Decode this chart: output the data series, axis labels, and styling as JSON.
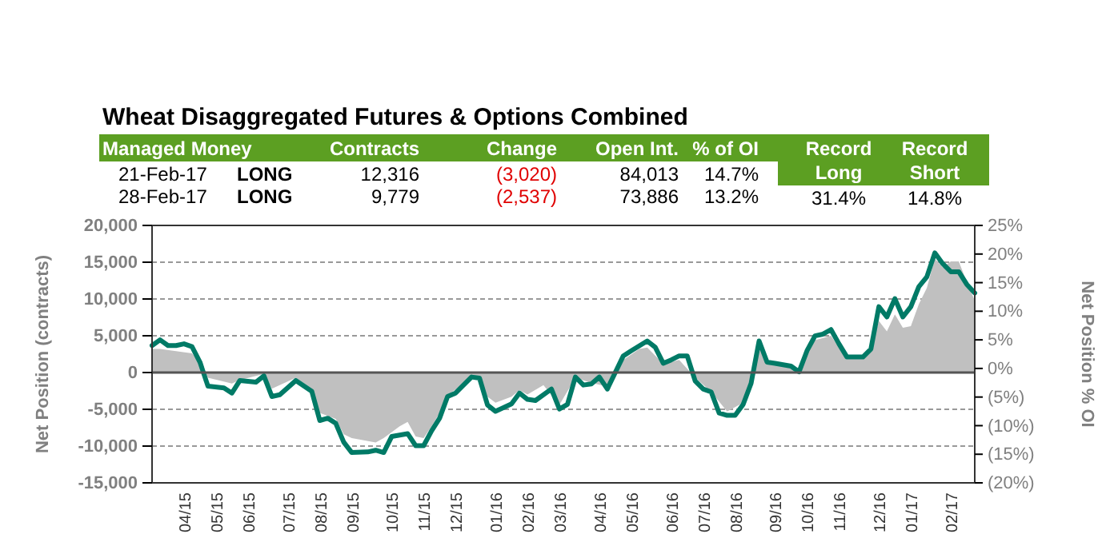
{
  "chart_data": {
    "type": "area",
    "title": "Wheat Disaggregated Futures & Options Combined",
    "ylabel": "Net Position (contracts)",
    "y2label": "Net Position % OI",
    "annotations": [
      "Managed Money",
      "Contracts",
      "Change",
      "Open Int.",
      "% of OI",
      "Record Long",
      "Record Short",
      "21-Feb-17",
      "LONG",
      "12,316",
      "(3,020)",
      "84,013",
      "14.7%",
      "28-Feb-17",
      "LONG",
      "9,779",
      "(2,537)",
      "73,886",
      "13.2%",
      "31.4%",
      "14.8%"
    ],
    "xlim": [
      "2015-03-10",
      "2017-02-28"
    ],
    "xticks": [
      {
        "value": "2015-04-07",
        "label": "04/15"
      },
      {
        "value": "2015-05-05",
        "label": "05/15"
      },
      {
        "value": "2015-06-02",
        "label": "06/15"
      },
      {
        "value": "2015-07-07",
        "label": "07/15"
      },
      {
        "value": "2015-08-04",
        "label": "08/15"
      },
      {
        "value": "2015-09-01",
        "label": "09/15"
      },
      {
        "value": "2015-10-06",
        "label": "10/15"
      },
      {
        "value": "2015-11-03",
        "label": "11/15"
      },
      {
        "value": "2015-12-01",
        "label": "12/15"
      },
      {
        "value": "2016-01-05",
        "label": "01/16"
      },
      {
        "value": "2016-02-02",
        "label": "02/16"
      },
      {
        "value": "2016-03-01",
        "label": "03/16"
      },
      {
        "value": "2016-04-05",
        "label": "04/16"
      },
      {
        "value": "2016-05-03",
        "label": "05/16"
      },
      {
        "value": "2016-06-07",
        "label": "06/16"
      },
      {
        "value": "2016-07-05",
        "label": "07/16"
      },
      {
        "value": "2016-08-02",
        "label": "08/16"
      },
      {
        "value": "2016-09-06",
        "label": "09/16"
      },
      {
        "value": "2016-10-04",
        "label": "10/16"
      },
      {
        "value": "2016-11-01",
        "label": "11/16"
      },
      {
        "value": "2016-12-06",
        "label": "12/16"
      },
      {
        "value": "2017-01-03",
        "label": "01/17"
      },
      {
        "value": "2017-02-07",
        "label": "02/17"
      }
    ],
    "ylim": [
      -15000,
      20000
    ],
    "yticks": [
      {
        "value": -15000,
        "label": "-15,000"
      },
      {
        "value": -10000,
        "label": "-10,000"
      },
      {
        "value": -5000,
        "label": "-5,000"
      },
      0,
      {
        "value": 5000,
        "label": "5,000"
      },
      {
        "value": 10000,
        "label": "10,000"
      },
      {
        "value": 15000,
        "label": "15,000"
      },
      {
        "value": 20000,
        "label": "20,000"
      }
    ],
    "y2lim": [
      -20,
      25
    ],
    "y2ticks": [
      {
        "value": -20,
        "label": "(20%)"
      },
      {
        "value": -15,
        "label": "(15%)"
      },
      {
        "value": -10,
        "label": "(10%)"
      },
      {
        "value": -5,
        "label": "(5%)"
      },
      {
        "value": 0,
        "label": "0%"
      },
      {
        "value": 5,
        "label": "5%"
      },
      {
        "value": 10,
        "label": "10%"
      },
      {
        "value": 15,
        "label": "15%"
      },
      {
        "value": 20,
        "label": "20%"
      },
      {
        "value": 25,
        "label": "25%"
      }
    ],
    "grid": "y",
    "series": [
      {
        "color": "#c0c0c0",
        "x": [
          "2015-03-10",
          "2015-03-17",
          "2015-04-14",
          "2015-04-21",
          "2015-04-28",
          "2015-05-19",
          "2015-05-26",
          "2015-06-16",
          "2015-06-23",
          "2015-07-14",
          "2015-07-28",
          "2015-08-04",
          "2015-08-18",
          "2015-08-25",
          "2015-09-01",
          "2015-09-22",
          "2015-09-29",
          "2015-10-13",
          "2015-10-20",
          "2015-10-27",
          "2015-11-03",
          "2015-11-10",
          "2015-11-17",
          "2015-11-24",
          "2015-12-15",
          "2015-12-22",
          "2015-12-29",
          "2016-01-05",
          "2016-01-19",
          "2016-01-26",
          "2016-02-02",
          "2016-02-16",
          "2016-03-01",
          "2016-03-15",
          "2016-03-29",
          "2016-04-12",
          "2016-04-26",
          "2016-05-10",
          "2016-05-17",
          "2016-05-31",
          "2016-06-14",
          "2016-06-28",
          "2016-07-12",
          "2016-07-26",
          "2016-08-09",
          "2016-08-16",
          "2016-08-23",
          "2016-08-30",
          "2016-09-20",
          "2016-09-27",
          "2016-10-04",
          "2016-10-11",
          "2016-10-25",
          "2016-11-01",
          "2016-11-08",
          "2016-11-22",
          "2016-11-29",
          "2016-12-06",
          "2016-12-13",
          "2016-12-20",
          "2016-12-27",
          "2017-01-03",
          "2017-01-10",
          "2017-01-17",
          "2017-01-24",
          "2017-01-31",
          "2017-02-07",
          "2017-02-14",
          "2017-02-21",
          "2017-02-28"
        ],
        "values": [
          3200,
          3200,
          2600,
          1400,
          -700,
          -1500,
          -1000,
          -200,
          -2200,
          -700,
          -2200,
          -5500,
          -6300,
          -8400,
          -8900,
          -9500,
          -8900,
          -7300,
          -6700,
          -8700,
          -8900,
          -7300,
          -5500,
          -3100,
          -700,
          -700,
          -3300,
          -4100,
          -3300,
          -2400,
          -3000,
          -1700,
          -4400,
          -700,
          -1400,
          -1900,
          1700,
          3200,
          3400,
          1200,
          1700,
          -700,
          -2600,
          -5300,
          -4100,
          -1500,
          3400,
          1200,
          700,
          -100,
          2700,
          4400,
          5000,
          3400,
          2000,
          2000,
          3200,
          7000,
          5600,
          7900,
          6100,
          6300,
          9300,
          11500,
          15500,
          14300,
          15100,
          15100,
          12316,
          9779
        ]
      },
      {
        "type": "line",
        "axis": "y2",
        "color": "#007a66",
        "x": [
          "2015-03-10",
          "2015-03-17",
          "2015-03-24",
          "2015-03-31",
          "2015-04-07",
          "2015-04-14",
          "2015-04-21",
          "2015-04-28",
          "2015-05-12",
          "2015-05-19",
          "2015-05-26",
          "2015-06-09",
          "2015-06-16",
          "2015-06-23",
          "2015-06-30",
          "2015-07-14",
          "2015-07-28",
          "2015-08-04",
          "2015-08-11",
          "2015-08-18",
          "2015-08-25",
          "2015-09-01",
          "2015-09-15",
          "2015-09-22",
          "2015-09-29",
          "2015-10-06",
          "2015-10-20",
          "2015-10-27",
          "2015-11-03",
          "2015-11-10",
          "2015-11-17",
          "2015-11-24",
          "2015-12-01",
          "2015-12-15",
          "2015-12-22",
          "2015-12-29",
          "2016-01-05",
          "2016-01-19",
          "2016-01-26",
          "2016-02-02",
          "2016-02-09",
          "2016-02-23",
          "2016-03-01",
          "2016-03-08",
          "2016-03-15",
          "2016-03-22",
          "2016-03-29",
          "2016-04-05",
          "2016-04-12",
          "2016-04-26",
          "2016-05-03",
          "2016-05-17",
          "2016-05-24",
          "2016-05-31",
          "2016-06-07",
          "2016-06-14",
          "2016-06-21",
          "2016-06-28",
          "2016-07-05",
          "2016-07-12",
          "2016-07-19",
          "2016-07-26",
          "2016-08-02",
          "2016-08-09",
          "2016-08-16",
          "2016-08-23",
          "2016-08-30",
          "2016-09-06",
          "2016-09-20",
          "2016-09-27",
          "2016-10-04",
          "2016-10-11",
          "2016-10-18",
          "2016-10-25",
          "2016-11-01",
          "2016-11-08",
          "2016-11-22",
          "2016-11-29",
          "2016-12-06",
          "2016-12-13",
          "2016-12-20",
          "2016-12-27",
          "2017-01-03",
          "2017-01-10",
          "2017-01-17",
          "2017-01-24",
          "2017-01-31",
          "2017-02-07",
          "2017-02-14",
          "2017-02-21",
          "2017-02-28"
        ],
        "values": [
          4.0,
          5.0,
          4.0,
          4.0,
          4.3,
          3.8,
          1.1,
          -3.1,
          -3.4,
          -4.3,
          -2.1,
          -2.4,
          -1.3,
          -4.9,
          -4.6,
          -2.1,
          -4.0,
          -9.1,
          -8.7,
          -9.6,
          -12.9,
          -14.7,
          -14.6,
          -14.3,
          -14.7,
          -11.9,
          -11.4,
          -13.5,
          -13.5,
          -10.9,
          -8.7,
          -4.9,
          -4.3,
          -1.5,
          -1.7,
          -6.4,
          -7.5,
          -6.2,
          -4.3,
          -5.4,
          -5.6,
          -3.6,
          -7.1,
          -6.3,
          -1.5,
          -2.9,
          -2.7,
          -1.5,
          -3.6,
          2.2,
          3.1,
          4.8,
          3.7,
          0.9,
          1.5,
          2.2,
          2.2,
          -2.2,
          -3.6,
          -4.1,
          -7.8,
          -8.2,
          -8.2,
          -6.3,
          -2.6,
          4.8,
          1.1,
          0.9,
          0.4,
          -0.6,
          3.1,
          5.7,
          6.0,
          6.8,
          4.3,
          2.0,
          2.0,
          3.4,
          10.8,
          9.0,
          12.2,
          9.0,
          10.8,
          14.3,
          16.0,
          20.2,
          18.3,
          16.9,
          16.9,
          14.7,
          13.2
        ]
      }
    ]
  }
}
